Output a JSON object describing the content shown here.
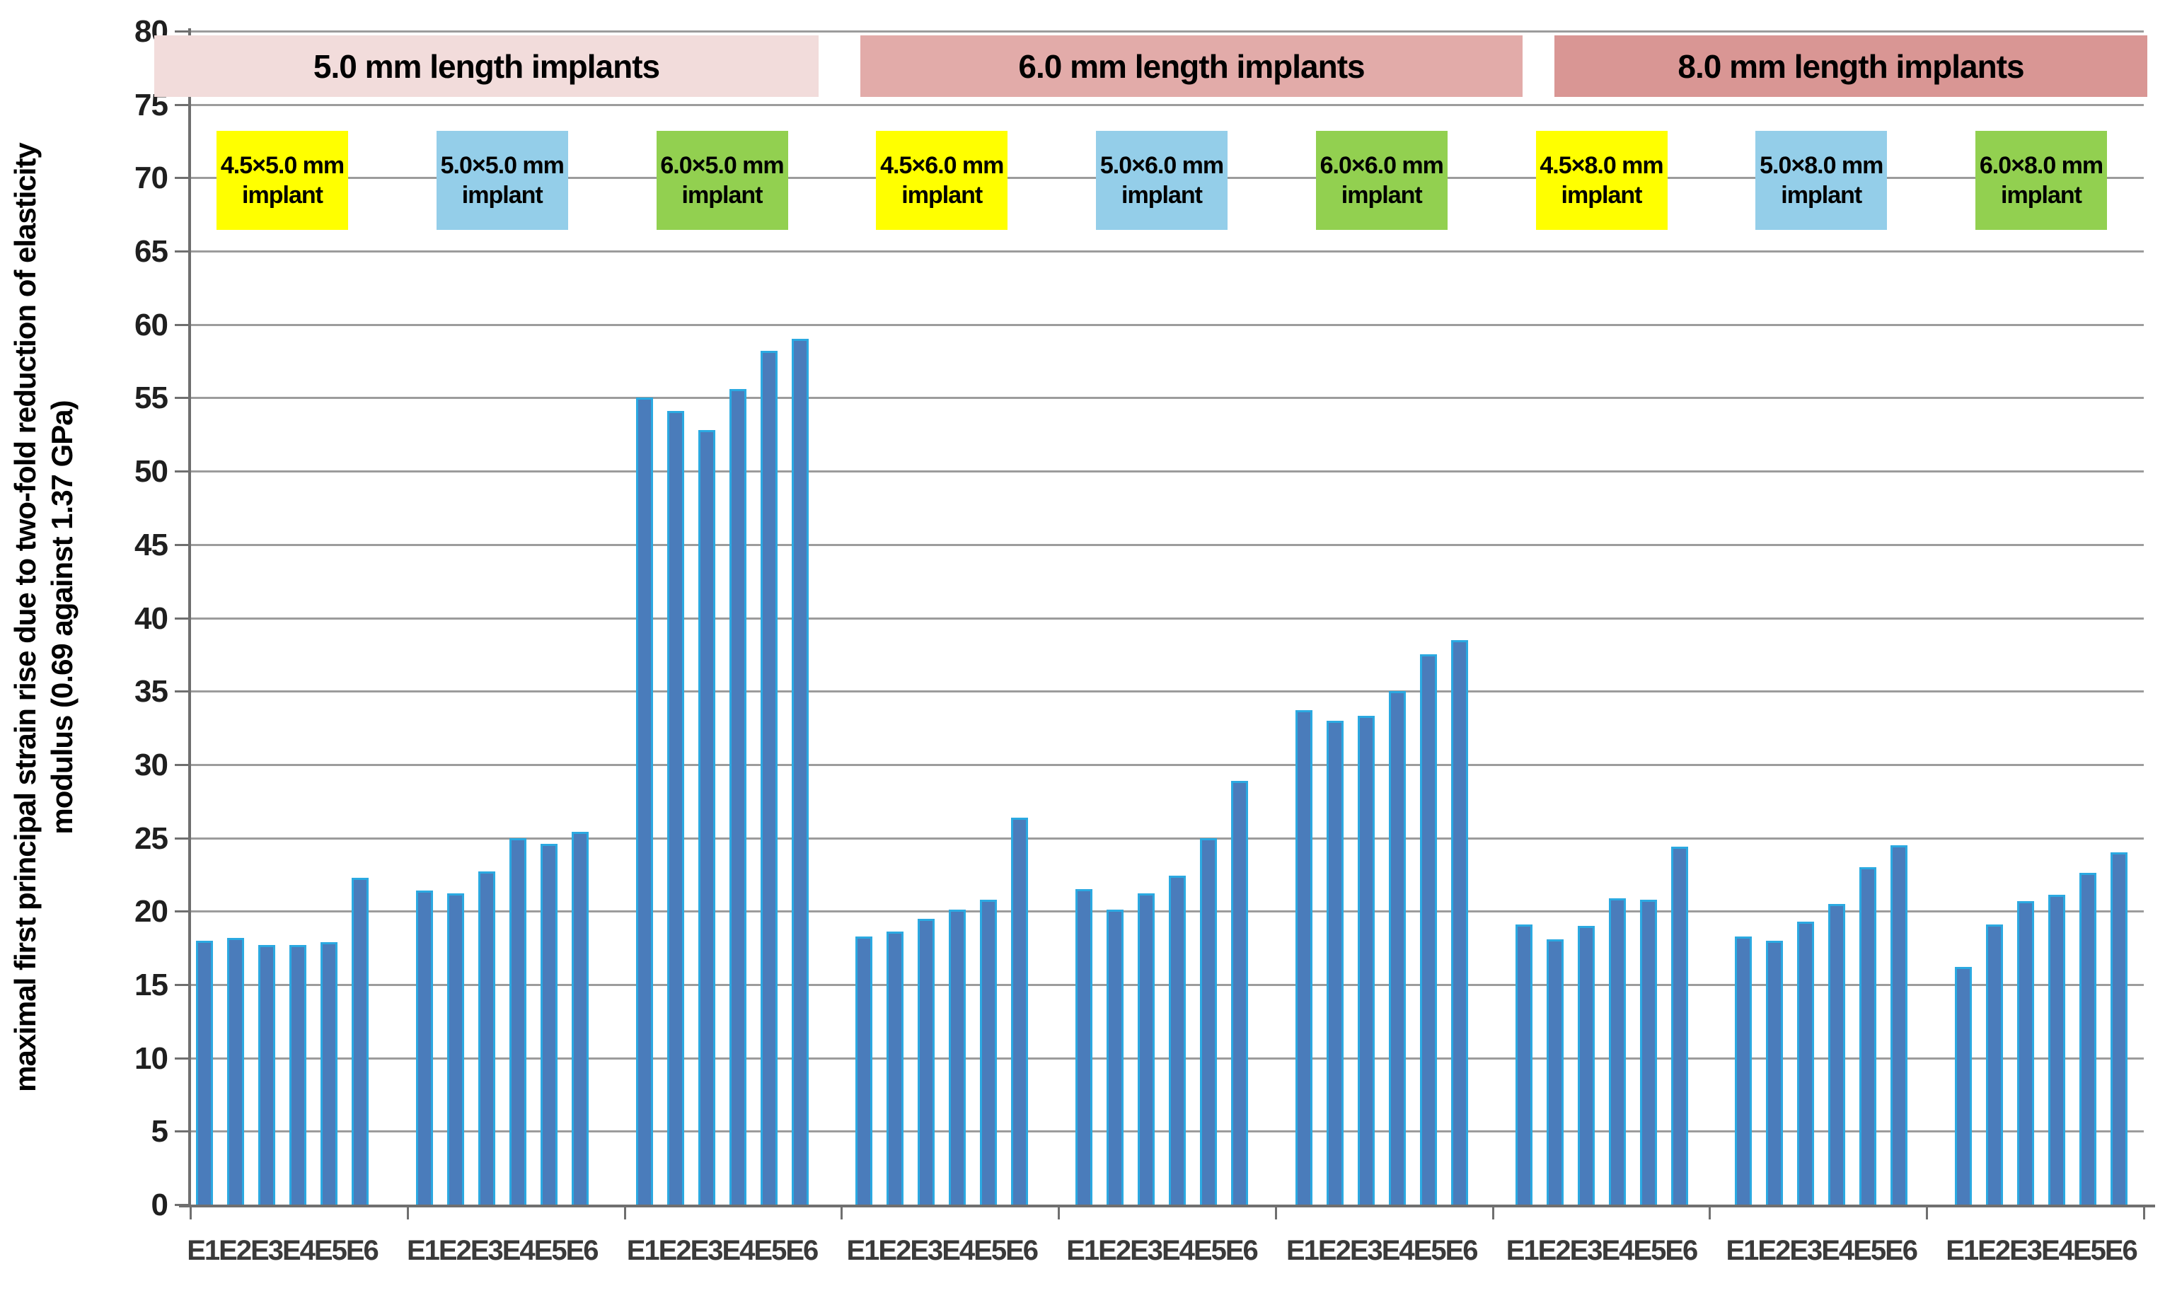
{
  "chart_data": {
    "type": "bar",
    "title": "",
    "ylabel_line1": "maximal first principal strain rise due to two-fold reduction of elasticity",
    "ylabel_line2": "modulus (0.69 against 1.37 GPa)",
    "xlabel": "",
    "ylim": [
      0,
      80
    ],
    "ytick_step": 5,
    "grid": true,
    "legend": false,
    "categories": [
      "E1",
      "E2",
      "E3",
      "E4",
      "E5",
      "E6"
    ],
    "x_group_tick_label": "E1E2E3E4E5E6",
    "sections": [
      {
        "label": "5.0 mm length implants",
        "band_color": "#F2DCDB"
      },
      {
        "label": "6.0 mm length implants",
        "band_color": "#E2ABA9"
      },
      {
        "label": "8.0 mm length implants",
        "band_color": "#D99694"
      }
    ],
    "series": [
      {
        "name": "4.5×5.0 mm implant",
        "box_line1": "4.5×5.0 mm",
        "box_line2": "implant",
        "section": 0,
        "box_color": "#FFFF00",
        "values": [
          18.0,
          18.2,
          17.7,
          17.7,
          17.9,
          22.3
        ]
      },
      {
        "name": "5.0×5.0 mm implant",
        "box_line1": "5.0×5.0 mm",
        "box_line2": "implant",
        "section": 0,
        "box_color": "#94CEE9",
        "values": [
          21.4,
          21.2,
          22.7,
          25.0,
          24.6,
          25.4
        ]
      },
      {
        "name": "6.0×5.0 mm implant",
        "box_line1": "6.0×5.0 mm",
        "box_line2": "implant",
        "section": 0,
        "box_color": "#92D050",
        "values": [
          55.0,
          54.1,
          52.8,
          55.6,
          58.2,
          59.0
        ]
      },
      {
        "name": "4.5×6.0 mm implant",
        "box_line1": "4.5×6.0 mm",
        "box_line2": "implant",
        "section": 1,
        "box_color": "#FFFF00",
        "values": [
          18.3,
          18.6,
          19.5,
          20.1,
          20.8,
          26.4
        ]
      },
      {
        "name": "5.0×6.0 mm implant",
        "box_line1": "5.0×6.0 mm",
        "box_line2": "implant",
        "section": 1,
        "box_color": "#94CEE9",
        "values": [
          21.5,
          20.1,
          21.2,
          22.4,
          25.0,
          28.9
        ]
      },
      {
        "name": "6.0×6.0 mm implant",
        "box_line1": "6.0×6.0 mm",
        "box_line2": "implant",
        "section": 1,
        "box_color": "#92D050",
        "values": [
          33.7,
          33.0,
          33.3,
          35.0,
          37.5,
          38.5
        ]
      },
      {
        "name": "4.5×8.0 mm implant",
        "box_line1": "4.5×8.0 mm",
        "box_line2": "implant",
        "section": 2,
        "box_color": "#FFFF00",
        "values": [
          19.1,
          18.1,
          19.0,
          20.9,
          20.8,
          24.4
        ]
      },
      {
        "name": "5.0×8.0 mm implant",
        "box_line1": "5.0×8.0 mm",
        "box_line2": "implant",
        "section": 2,
        "box_color": "#94CEE9",
        "values": [
          18.3,
          18.0,
          19.3,
          20.5,
          23.0,
          24.5
        ]
      },
      {
        "name": "6.0×8.0 mm implant",
        "box_line1": "6.0×8.0 mm",
        "box_line2": "implant",
        "section": 2,
        "box_color": "#92D050",
        "values": [
          16.2,
          19.1,
          20.7,
          21.1,
          22.6,
          24.0
        ]
      }
    ],
    "bar_fill_color": "#4A7CBB",
    "bar_edge_color": "#2BA9E1",
    "gridline_color": "#9C9C9C",
    "axis_color": "#6F6F6F"
  }
}
